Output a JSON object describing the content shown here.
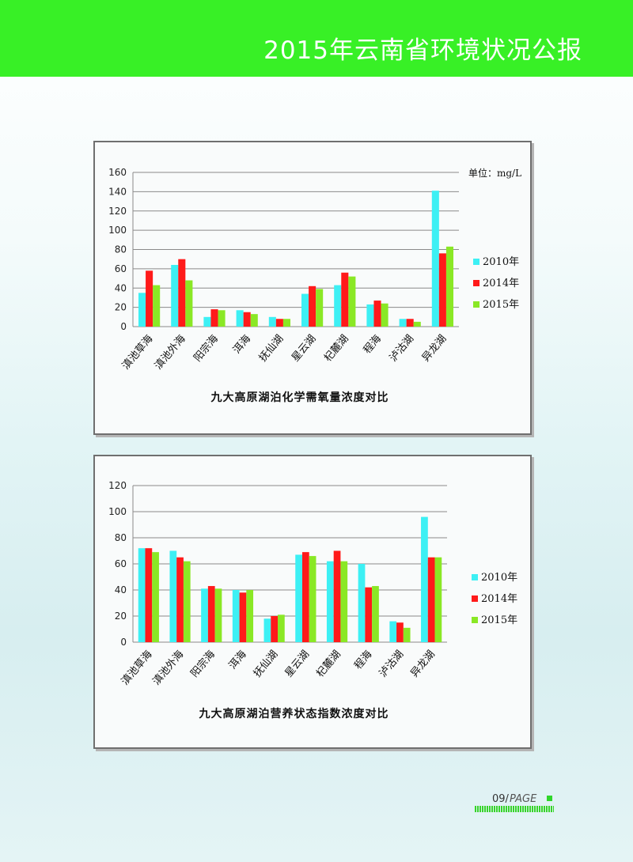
{
  "header": {
    "title": "2015年云南省环境状况公报"
  },
  "footer": {
    "page_number": "09",
    "page_label": "PAGE"
  },
  "colors": {
    "header_green": "#38f026",
    "series_2010": "#3df0f4",
    "series_2014": "#ff1a1a",
    "series_2015": "#8ae825"
  },
  "chart_data": [
    {
      "type": "bar",
      "title": "九大高原湖泊化学需氧量浓度对比",
      "unit": "单位：mg/L",
      "categories": [
        "滇池草海",
        "滇池外海",
        "阳宗海",
        "洱海",
        "抚仙湖",
        "星云湖",
        "杞麓湖",
        "程海",
        "泸沽湖",
        "异龙湖"
      ],
      "series": [
        {
          "name": "2010年",
          "values": [
            35,
            64,
            10,
            17,
            10,
            34,
            43,
            23,
            8,
            141
          ]
        },
        {
          "name": "2014年",
          "values": [
            58,
            70,
            18,
            15,
            8,
            42,
            56,
            27,
            8,
            76
          ]
        },
        {
          "name": "2015年",
          "values": [
            43,
            48,
            17,
            13,
            8,
            39,
            52,
            24,
            5,
            83
          ]
        }
      ],
      "ylim": [
        0,
        160
      ],
      "yticks": [
        "0",
        "20",
        "40",
        "60",
        "80",
        "100",
        "120",
        "140",
        "160"
      ],
      "grid": true,
      "legend": "right"
    },
    {
      "type": "bar",
      "title": "九大高原湖泊营养状态指数浓度对比",
      "categories": [
        "滇池草海",
        "滇池外海",
        "阳宗海",
        "洱海",
        "抚仙湖",
        "星云湖",
        "杞麓湖",
        "程海",
        "泸沽湖",
        "异龙湖"
      ],
      "series": [
        {
          "name": "2010年",
          "values": [
            72,
            70,
            41,
            40,
            18,
            67,
            62,
            60,
            16,
            96
          ]
        },
        {
          "name": "2014年",
          "values": [
            72,
            65,
            43,
            38,
            20,
            69,
            70,
            42,
            15,
            65
          ]
        },
        {
          "name": "2015年",
          "values": [
            69,
            62,
            41,
            40,
            21,
            66,
            62,
            43,
            11,
            65
          ]
        }
      ],
      "ylim": [
        0,
        120
      ],
      "yticks": [
        "0",
        "20",
        "40",
        "60",
        "80",
        "100",
        "120"
      ],
      "grid": true,
      "legend": "right"
    }
  ]
}
